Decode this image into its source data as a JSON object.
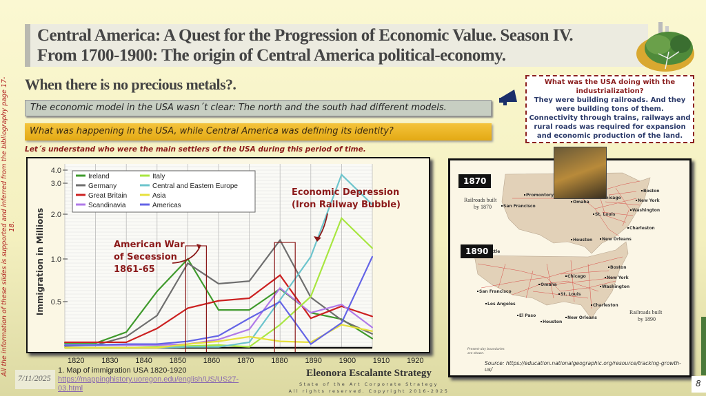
{
  "title": {
    "line1": "Central America:  A Quest for the Progression of Economic Value. Season IV.",
    "line2": "From 1700-1900: The origin of  Central America political-economy."
  },
  "subtitle": "When there is no precious metals?.",
  "bar1": "The economic model in the USA wasn´t clear: The north and the south had different models.",
  "bar2": "What was happening in the USA, while Central America was defining its identity?",
  "note": "Let´s understand who were the main settlers of the USA during this period of time.",
  "callout": {
    "question": "What was the USA doing with the industrialization?",
    "answer1": "They were building railroads. And they were building tons of them.",
    "answer2": "Connectivity through trains, railways  and rural roads was required for expansion and economic production of the land."
  },
  "side_note": "All the information of these slides is supported and inferred from the bibliography page 17-18.",
  "chart_data": {
    "type": "line",
    "ylabel": "Immigration in Millions",
    "xlabel": "",
    "x": [
      1820,
      1830,
      1840,
      1850,
      1860,
      1870,
      1880,
      1890,
      1900,
      1910,
      1920
    ],
    "x_tick_labels": [
      "1820",
      "1830",
      "1840",
      "1850",
      "1860",
      "1870",
      "1880",
      "1890",
      "1900",
      "1910",
      "1920"
    ],
    "y_ticks": [
      0.5,
      1.0,
      2.0,
      3.0,
      4.0
    ],
    "y_tick_labels": [
      "0.5",
      "1.0",
      "2.0",
      "3.0",
      "4.0"
    ],
    "ylim": [
      0,
      4.0
    ],
    "grid": true,
    "legend_position": "top-left",
    "series": [
      {
        "name": "Ireland",
        "color": "#3f9a2c",
        "values": [
          0.05,
          0.05,
          0.17,
          0.62,
          1.0,
          0.41,
          0.41,
          0.65,
          0.38,
          0.31,
          0.1
        ]
      },
      {
        "name": "Germany",
        "color": "#6e6e6e",
        "values": [
          0.02,
          0.03,
          0.12,
          0.35,
          0.95,
          0.71,
          0.74,
          1.42,
          0.55,
          0.3,
          0.15
        ]
      },
      {
        "name": "Great Britain",
        "color": "#cc2020",
        "values": [
          0.06,
          0.06,
          0.06,
          0.21,
          0.43,
          0.51,
          0.54,
          0.81,
          0.32,
          0.45,
          0.34
        ]
      },
      {
        "name": "Scandinavia",
        "color": "#b07ae8",
        "values": [
          0.03,
          0.03,
          0.03,
          0.03,
          0.04,
          0.09,
          0.2,
          0.66,
          0.38,
          0.47,
          0.22
        ]
      },
      {
        "name": "Italy",
        "color": "#a8e640",
        "values": [
          0.0,
          0.0,
          0.0,
          0.01,
          0.02,
          0.03,
          0.01,
          0.25,
          0.56,
          1.91,
          1.24
        ]
      },
      {
        "name": "Central and Eastern Europe",
        "color": "#6cc4cc",
        "values": [
          0.0,
          0.0,
          0.0,
          0.0,
          0.01,
          0.01,
          0.06,
          0.52,
          1.05,
          3.65,
          2.31
        ]
      },
      {
        "name": "Asia",
        "color": "#e6e03c",
        "values": [
          0.0,
          0.0,
          0.0,
          0.0,
          0.04,
          0.07,
          0.12,
          0.07,
          0.06,
          0.25,
          0.18
        ]
      },
      {
        "name": "Americas",
        "color": "#6464e6",
        "values": [
          0.03,
          0.03,
          0.04,
          0.04,
          0.07,
          0.13,
          0.32,
          0.5,
          0.04,
          0.27,
          1.05
        ]
      }
    ],
    "annotations": [
      {
        "text": "American War of Secession 1861-65",
        "lines": [
          "American War",
          "of Secession",
          "1861-65"
        ],
        "x": 1860
      },
      {
        "text": "Economic Depression (Iron Railway Bubble)",
        "lines": [
          "Economic Depression",
          "(Iron Railway Bubble)"
        ],
        "x": 1890
      }
    ]
  },
  "map": {
    "badge_1870": "1870",
    "badge_1890": "1890",
    "label_1870": [
      "Railroads built",
      "by 1870"
    ],
    "label_1890": [
      "Railroads built",
      "by 1890"
    ],
    "cities_1870": [
      "Promontory",
      "San Francisco",
      "Omaha",
      "Chicago",
      "Boston",
      "New York",
      "Washington",
      "St. Louis",
      "Charleston",
      "Houston",
      "New Orleans"
    ],
    "cities_1890": [
      "Seattle",
      "San Francisco",
      "Los Angeles",
      "El Paso",
      "Houston",
      "Omaha",
      "Chicago",
      "St. Louis",
      "Boston",
      "New York",
      "Washington",
      "Charleston",
      "New Orleans"
    ],
    "boundaries_note": [
      "Present-day boundaries",
      "are shown."
    ],
    "source": "Source: https://education.nationalgeographic.org/resource/tracking-growth-us/"
  },
  "footer": {
    "date": "7/11/2025",
    "ref_number": "1.",
    "ref_text": "Map of immigration USA 1820-1920 ",
    "ref_link_1": "https://mappinghistory.uoregon.edu/english/US/US27-",
    "ref_link_2": "03.html",
    "brand": "Eleonora Escalante Strategy",
    "brand_sub1": "State of the Art Corporate Strategy",
    "brand_sub2": "All rights reserved. Copyright 2016-2025",
    "page": "8"
  }
}
